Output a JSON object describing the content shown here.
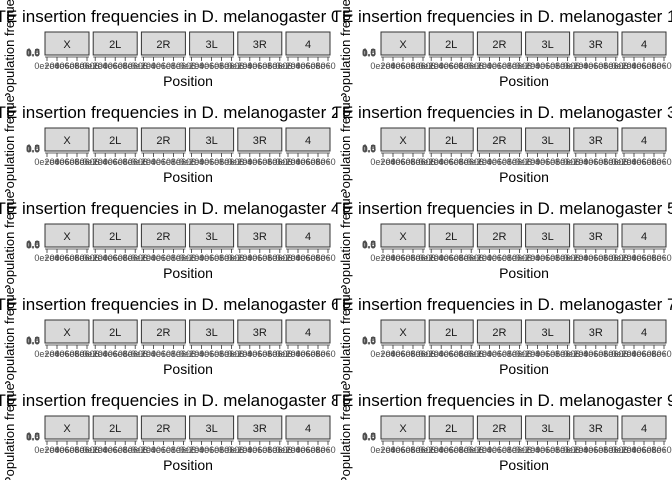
{
  "layout": {
    "rows": 5,
    "cols": 2
  },
  "chart_data": [
    {
      "type": "bar",
      "title": "TE insertion frequencies in D. melanogaster 0",
      "xlabel": "Position",
      "ylabel": "Population frequency",
      "panels": [
        "X",
        "2L",
        "2R",
        "3L",
        "3R",
        "4"
      ],
      "yticks": [
        "1.0",
        "0.5",
        "0.0"
      ],
      "xticks": [
        "0e+00",
        "2e+06",
        "4e+06",
        "6e+06",
        "8e+06"
      ],
      "series": []
    },
    {
      "type": "bar",
      "title": "TE insertion frequencies in D. melanogaster 1",
      "xlabel": "Position",
      "ylabel": "Population frequency",
      "panels": [
        "X",
        "2L",
        "2R",
        "3L",
        "3R",
        "4"
      ],
      "yticks": [
        "1.0",
        "0.5",
        "0.0"
      ],
      "xticks": [
        "0e+00",
        "2e+06",
        "4e+06",
        "6e+06",
        "8e+06"
      ],
      "series": []
    },
    {
      "type": "bar",
      "title": "TE insertion frequencies in D. melanogaster 2",
      "xlabel": "Position",
      "ylabel": "Population frequency",
      "panels": [
        "X",
        "2L",
        "2R",
        "3L",
        "3R",
        "4"
      ],
      "yticks": [
        "1.0",
        "0.5",
        "0.0"
      ],
      "xticks": [
        "0e+00",
        "2e+06",
        "4e+06",
        "6e+06",
        "8e+06"
      ],
      "series": []
    },
    {
      "type": "bar",
      "title": "TE insertion frequencies in D. melanogaster 3",
      "xlabel": "Position",
      "ylabel": "Population frequency",
      "panels": [
        "X",
        "2L",
        "2R",
        "3L",
        "3R",
        "4"
      ],
      "yticks": [
        "1.0",
        "0.5",
        "0.0"
      ],
      "xticks": [
        "0e+00",
        "2e+06",
        "4e+06",
        "6e+06",
        "8e+06"
      ],
      "series": []
    },
    {
      "type": "bar",
      "title": "TE insertion frequencies in D. melanogaster 4",
      "xlabel": "Position",
      "ylabel": "Population frequency",
      "panels": [
        "X",
        "2L",
        "2R",
        "3L",
        "3R",
        "4"
      ],
      "yticks": [
        "1.0",
        "0.5",
        "0.0"
      ],
      "xticks": [
        "0e+00",
        "2e+06",
        "4e+06",
        "6e+06",
        "8e+06"
      ],
      "series": []
    },
    {
      "type": "bar",
      "title": "TE insertion frequencies in D. melanogaster 5",
      "xlabel": "Position",
      "ylabel": "Population frequency",
      "panels": [
        "X",
        "2L",
        "2R",
        "3L",
        "3R",
        "4"
      ],
      "yticks": [
        "1.0",
        "0.5",
        "0.0"
      ],
      "xticks": [
        "0e+00",
        "2e+06",
        "4e+06",
        "6e+06",
        "8e+06"
      ],
      "series": []
    },
    {
      "type": "bar",
      "title": "TE insertion frequencies in D. melanogaster 6",
      "xlabel": "Position",
      "ylabel": "Population frequency",
      "panels": [
        "X",
        "2L",
        "2R",
        "3L",
        "3R",
        "4"
      ],
      "yticks": [
        "1.0",
        "0.5",
        "0.0"
      ],
      "xticks": [
        "0e+00",
        "2e+06",
        "4e+06",
        "6e+06",
        "8e+06"
      ],
      "series": []
    },
    {
      "type": "bar",
      "title": "TE insertion frequencies in D. melanogaster 7",
      "xlabel": "Position",
      "ylabel": "Population frequency",
      "panels": [
        "X",
        "2L",
        "2R",
        "3L",
        "3R",
        "4"
      ],
      "yticks": [
        "1.0",
        "0.5",
        "0.0"
      ],
      "xticks": [
        "0e+00",
        "2e+06",
        "4e+06",
        "6e+06",
        "8e+06"
      ],
      "series": []
    },
    {
      "type": "bar",
      "title": "TE insertion frequencies in D. melanogaster 8",
      "xlabel": "Position",
      "ylabel": "Population frequency",
      "panels": [
        "X",
        "2L",
        "2R",
        "3L",
        "3R",
        "4"
      ],
      "yticks": [
        "1.0",
        "0.5",
        "0.0"
      ],
      "xticks": [
        "0e+00",
        "2e+06",
        "4e+06",
        "6e+06",
        "8e+06"
      ],
      "series": []
    },
    {
      "type": "bar",
      "title": "TE insertion frequencies in D. melanogaster 9",
      "xlabel": "Position",
      "ylabel": "Population frequency",
      "panels": [
        "X",
        "2L",
        "2R",
        "3L",
        "3R",
        "4"
      ],
      "yticks": [
        "1.0",
        "0.5",
        "0.0"
      ],
      "xticks": [
        "0e+00",
        "2e+06",
        "4e+06",
        "6e+06",
        "8e+06"
      ],
      "series": []
    }
  ],
  "colors": {
    "strip_fill": "#d9d9d9",
    "strip_border": "#333333",
    "text": "#000000",
    "tick_text": "#4d4d4d",
    "tick": "#333333"
  }
}
